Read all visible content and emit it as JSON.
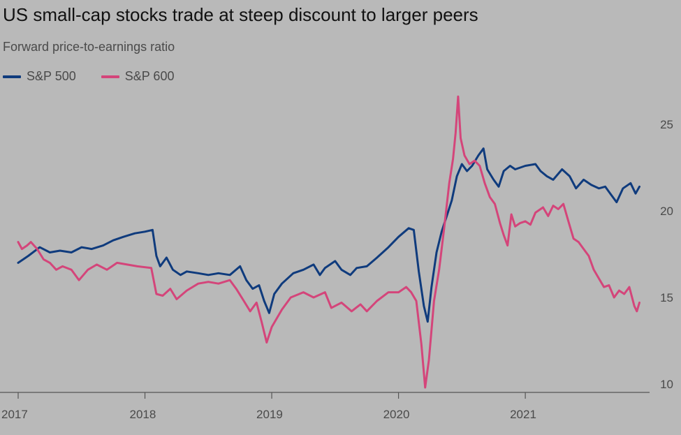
{
  "chart_data": {
    "type": "line",
    "title": "US small-cap stocks trade at steep discount to larger peers",
    "subtitle": "Forward price-to-earnings ratio",
    "xlabel": "",
    "ylabel": "",
    "ylim": [
      10,
      27
    ],
    "y_ticks": [
      10,
      15,
      20,
      25
    ],
    "x_ticks": [
      "2017",
      "2018",
      "2019",
      "2020",
      "2021"
    ],
    "x_tick_values": [
      2017.0,
      2018.0,
      2019.0,
      2020.0,
      2021.0
    ],
    "xlim": [
      2017.0,
      2021.98
    ],
    "y_axis_side": "right",
    "grid": false,
    "legend_position": "top-left",
    "series": [
      {
        "name": "S&P 500",
        "color": "#0f3b7d",
        "points": [
          [
            2017.0,
            17.0
          ],
          [
            2017.08,
            17.4
          ],
          [
            2017.17,
            17.9
          ],
          [
            2017.25,
            17.6
          ],
          [
            2017.33,
            17.7
          ],
          [
            2017.42,
            17.6
          ],
          [
            2017.5,
            17.9
          ],
          [
            2017.58,
            17.8
          ],
          [
            2017.67,
            18.0
          ],
          [
            2017.75,
            18.3
          ],
          [
            2017.83,
            18.5
          ],
          [
            2017.92,
            18.7
          ],
          [
            2018.0,
            18.8
          ],
          [
            2018.06,
            18.9
          ],
          [
            2018.09,
            17.4
          ],
          [
            2018.12,
            16.8
          ],
          [
            2018.17,
            17.3
          ],
          [
            2018.22,
            16.6
          ],
          [
            2018.28,
            16.3
          ],
          [
            2018.33,
            16.5
          ],
          [
            2018.42,
            16.4
          ],
          [
            2018.5,
            16.3
          ],
          [
            2018.58,
            16.4
          ],
          [
            2018.67,
            16.3
          ],
          [
            2018.75,
            16.8
          ],
          [
            2018.8,
            16.0
          ],
          [
            2018.85,
            15.5
          ],
          [
            2018.9,
            15.7
          ],
          [
            2018.94,
            14.8
          ],
          [
            2018.98,
            14.1
          ],
          [
            2019.02,
            15.2
          ],
          [
            2019.08,
            15.8
          ],
          [
            2019.17,
            16.4
          ],
          [
            2019.25,
            16.6
          ],
          [
            2019.33,
            16.9
          ],
          [
            2019.38,
            16.3
          ],
          [
            2019.42,
            16.7
          ],
          [
            2019.5,
            17.1
          ],
          [
            2019.55,
            16.6
          ],
          [
            2019.62,
            16.3
          ],
          [
            2019.67,
            16.7
          ],
          [
            2019.75,
            16.8
          ],
          [
            2019.83,
            17.3
          ],
          [
            2019.92,
            17.9
          ],
          [
            2020.0,
            18.5
          ],
          [
            2020.08,
            19.0
          ],
          [
            2020.12,
            18.9
          ],
          [
            2020.16,
            16.5
          ],
          [
            2020.2,
            14.5
          ],
          [
            2020.23,
            13.6
          ],
          [
            2020.26,
            15.6
          ],
          [
            2020.3,
            17.6
          ],
          [
            2020.34,
            18.8
          ],
          [
            2020.38,
            19.7
          ],
          [
            2020.42,
            20.6
          ],
          [
            2020.46,
            22.0
          ],
          [
            2020.5,
            22.7
          ],
          [
            2020.54,
            22.3
          ],
          [
            2020.58,
            22.6
          ],
          [
            2020.63,
            23.2
          ],
          [
            2020.67,
            23.6
          ],
          [
            2020.7,
            22.4
          ],
          [
            2020.75,
            21.8
          ],
          [
            2020.79,
            21.4
          ],
          [
            2020.83,
            22.3
          ],
          [
            2020.88,
            22.6
          ],
          [
            2020.92,
            22.4
          ],
          [
            2021.0,
            22.6
          ],
          [
            2021.08,
            22.7
          ],
          [
            2021.12,
            22.3
          ],
          [
            2021.17,
            22.0
          ],
          [
            2021.22,
            21.8
          ],
          [
            2021.29,
            22.4
          ],
          [
            2021.35,
            22.0
          ],
          [
            2021.4,
            21.3
          ],
          [
            2021.46,
            21.8
          ],
          [
            2021.52,
            21.5
          ],
          [
            2021.58,
            21.3
          ],
          [
            2021.63,
            21.4
          ],
          [
            2021.67,
            21.0
          ],
          [
            2021.72,
            20.5
          ],
          [
            2021.77,
            21.3
          ],
          [
            2021.83,
            21.6
          ],
          [
            2021.87,
            21.0
          ],
          [
            2021.9,
            21.4
          ]
        ]
      },
      {
        "name": "S&P 600",
        "color": "#d4457a",
        "points": [
          [
            2017.0,
            18.2
          ],
          [
            2017.03,
            17.8
          ],
          [
            2017.07,
            18.0
          ],
          [
            2017.1,
            18.2
          ],
          [
            2017.15,
            17.8
          ],
          [
            2017.2,
            17.2
          ],
          [
            2017.25,
            17.0
          ],
          [
            2017.3,
            16.6
          ],
          [
            2017.35,
            16.8
          ],
          [
            2017.42,
            16.6
          ],
          [
            2017.48,
            16.0
          ],
          [
            2017.55,
            16.6
          ],
          [
            2017.62,
            16.9
          ],
          [
            2017.7,
            16.6
          ],
          [
            2017.78,
            17.0
          ],
          [
            2017.86,
            16.9
          ],
          [
            2017.94,
            16.8
          ],
          [
            2018.05,
            16.7
          ],
          [
            2018.09,
            15.2
          ],
          [
            2018.14,
            15.1
          ],
          [
            2018.2,
            15.5
          ],
          [
            2018.25,
            14.9
          ],
          [
            2018.33,
            15.4
          ],
          [
            2018.42,
            15.8
          ],
          [
            2018.5,
            15.9
          ],
          [
            2018.58,
            15.8
          ],
          [
            2018.67,
            16.0
          ],
          [
            2018.72,
            15.5
          ],
          [
            2018.78,
            14.8
          ],
          [
            2018.83,
            14.2
          ],
          [
            2018.88,
            14.7
          ],
          [
            2018.92,
            13.6
          ],
          [
            2018.96,
            12.4
          ],
          [
            2019.0,
            13.3
          ],
          [
            2019.08,
            14.3
          ],
          [
            2019.15,
            15.0
          ],
          [
            2019.25,
            15.3
          ],
          [
            2019.33,
            15.0
          ],
          [
            2019.42,
            15.3
          ],
          [
            2019.47,
            14.4
          ],
          [
            2019.55,
            14.7
          ],
          [
            2019.63,
            14.2
          ],
          [
            2019.7,
            14.6
          ],
          [
            2019.75,
            14.2
          ],
          [
            2019.83,
            14.8
          ],
          [
            2019.92,
            15.3
          ],
          [
            2020.0,
            15.3
          ],
          [
            2020.06,
            15.6
          ],
          [
            2020.1,
            15.3
          ],
          [
            2020.14,
            14.8
          ],
          [
            2020.18,
            12.3
          ],
          [
            2020.21,
            9.8
          ],
          [
            2020.24,
            11.4
          ],
          [
            2020.28,
            14.8
          ],
          [
            2020.32,
            16.6
          ],
          [
            2020.36,
            19.0
          ],
          [
            2020.4,
            21.6
          ],
          [
            2020.43,
            23.0
          ],
          [
            2020.45,
            24.5
          ],
          [
            2020.47,
            26.6
          ],
          [
            2020.49,
            24.2
          ],
          [
            2020.52,
            23.2
          ],
          [
            2020.56,
            22.7
          ],
          [
            2020.6,
            22.9
          ],
          [
            2020.64,
            22.6
          ],
          [
            2020.68,
            21.6
          ],
          [
            2020.72,
            20.8
          ],
          [
            2020.76,
            20.4
          ],
          [
            2020.8,
            19.3
          ],
          [
            2020.83,
            18.6
          ],
          [
            2020.86,
            18.0
          ],
          [
            2020.89,
            19.8
          ],
          [
            2020.92,
            19.1
          ],
          [
            2020.96,
            19.3
          ],
          [
            2021.0,
            19.4
          ],
          [
            2021.04,
            19.2
          ],
          [
            2021.08,
            19.9
          ],
          [
            2021.14,
            20.2
          ],
          [
            2021.18,
            19.7
          ],
          [
            2021.22,
            20.3
          ],
          [
            2021.26,
            20.1
          ],
          [
            2021.3,
            20.4
          ],
          [
            2021.34,
            19.4
          ],
          [
            2021.38,
            18.4
          ],
          [
            2021.42,
            18.2
          ],
          [
            2021.46,
            17.8
          ],
          [
            2021.5,
            17.4
          ],
          [
            2021.54,
            16.6
          ],
          [
            2021.58,
            16.1
          ],
          [
            2021.62,
            15.6
          ],
          [
            2021.66,
            15.7
          ],
          [
            2021.7,
            15.0
          ],
          [
            2021.74,
            15.4
          ],
          [
            2021.78,
            15.2
          ],
          [
            2021.82,
            15.6
          ],
          [
            2021.86,
            14.5
          ],
          [
            2021.88,
            14.2
          ],
          [
            2021.9,
            14.7
          ]
        ]
      }
    ]
  }
}
